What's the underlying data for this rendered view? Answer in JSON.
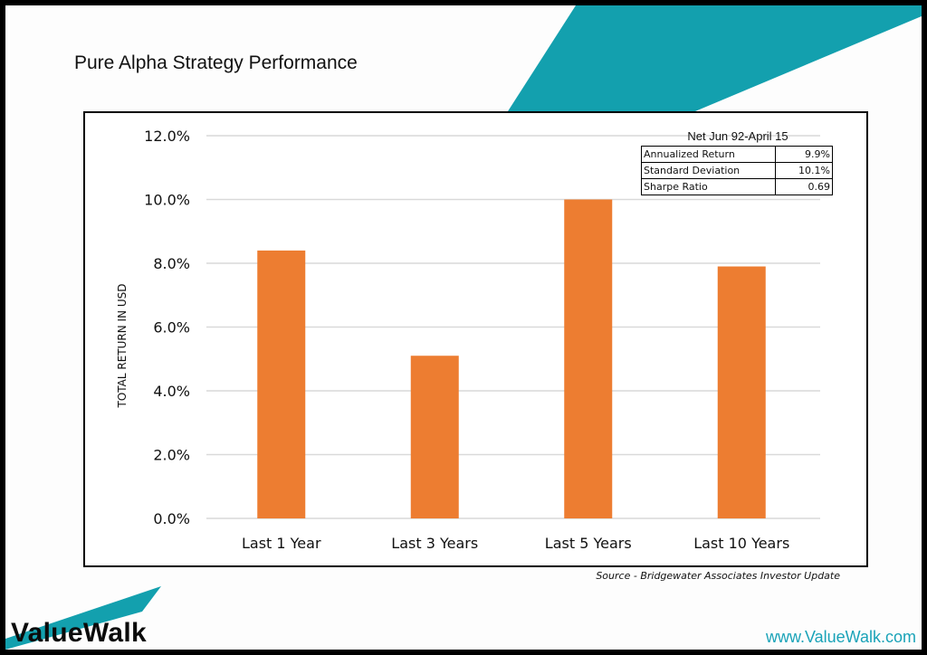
{
  "header": {
    "title": "Pure Alpha Strategy Performance"
  },
  "stats_box": {
    "title": "Net Jun 92-April 15",
    "rows": [
      {
        "label": "Annualized Return",
        "value": "9.9%"
      },
      {
        "label": "Standard Deviation",
        "value": "10.1%"
      },
      {
        "label": "Sharpe Ratio",
        "value": "0.69"
      }
    ]
  },
  "footer": {
    "source": "Source - Bridgewater Associates Investor Update",
    "brand": "ValueWalk",
    "site": "www.ValueWalk.com"
  },
  "colors": {
    "bar": "#ed7d31",
    "accent": "#13a0ae",
    "grid": "#d9d9d9"
  },
  "chart_data": {
    "type": "bar",
    "title": "Pure Alpha Strategy Performance",
    "xlabel": "",
    "ylabel": "TOTAL RETURN IN USD",
    "categories": [
      "Last 1 Year",
      "Last 3 Years",
      "Last 5 Years",
      "Last 10 Years"
    ],
    "values": [
      8.4,
      5.1,
      10.0,
      7.9
    ],
    "ylim": [
      0,
      12
    ],
    "yticks": [
      0,
      2,
      4,
      6,
      8,
      10,
      12
    ],
    "ytick_labels": [
      "0.0%",
      "2.0%",
      "4.0%",
      "6.0%",
      "8.0%",
      "10.0%",
      "12.0%"
    ],
    "grid": true,
    "legend": "none"
  }
}
